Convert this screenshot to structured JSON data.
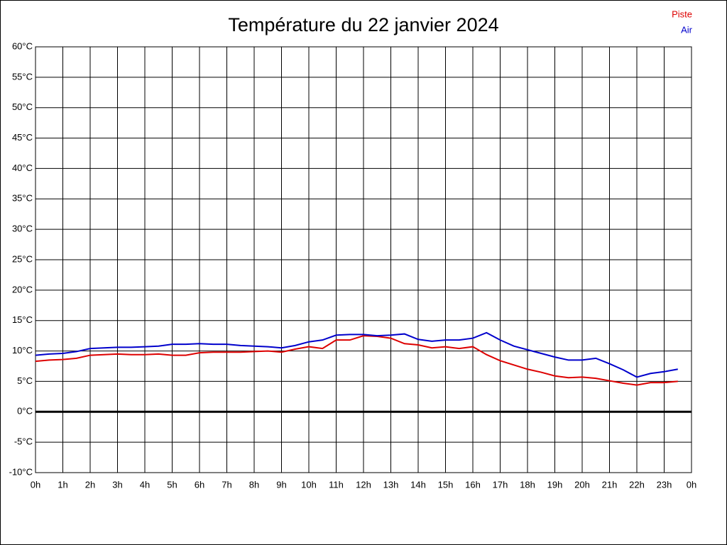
{
  "chart_data": {
    "type": "line",
    "title": "Température du 22 janvier 2024",
    "x": [
      0,
      0.5,
      1,
      1.5,
      2,
      2.5,
      3,
      3.5,
      4,
      4.5,
      5,
      5.5,
      6,
      6.5,
      7,
      7.5,
      8,
      8.5,
      9,
      9.5,
      10,
      10.5,
      11,
      11.5,
      12,
      12.5,
      13,
      13.5,
      14,
      14.5,
      15,
      15.5,
      16,
      16.5,
      17,
      17.5,
      18,
      18.5,
      19,
      19.5,
      20,
      20.5,
      21,
      21.5,
      22,
      22.5,
      23,
      23.5
    ],
    "series": [
      {
        "name": "Piste",
        "color": "#dd0000",
        "values": [
          8.3,
          8.5,
          8.6,
          8.8,
          9.3,
          9.4,
          9.5,
          9.4,
          9.4,
          9.5,
          9.3,
          9.3,
          9.7,
          9.8,
          9.8,
          9.8,
          9.9,
          10.0,
          9.8,
          10.3,
          10.7,
          10.4,
          11.8,
          11.8,
          12.5,
          12.4,
          12.1,
          11.2,
          11.0,
          10.5,
          10.7,
          10.4,
          10.7,
          9.4,
          8.4,
          7.7,
          7.0,
          6.5,
          5.9,
          5.6,
          5.7,
          5.5,
          5.1,
          4.7,
          4.4,
          4.8,
          4.8,
          5.0
        ]
      },
      {
        "name": "Air",
        "color": "#0000cc",
        "values": [
          9.3,
          9.5,
          9.6,
          9.9,
          10.4,
          10.5,
          10.6,
          10.6,
          10.7,
          10.8,
          11.1,
          11.1,
          11.2,
          11.1,
          11.1,
          10.9,
          10.8,
          10.7,
          10.5,
          10.9,
          11.5,
          11.8,
          12.6,
          12.7,
          12.7,
          12.5,
          12.6,
          12.8,
          11.9,
          11.6,
          11.8,
          11.8,
          12.1,
          13.0,
          11.8,
          10.8,
          10.2,
          9.6,
          9.0,
          8.5,
          8.5,
          8.8,
          7.9,
          6.9,
          5.7,
          6.3,
          6.6,
          7.0
        ]
      }
    ],
    "xlim": [
      0,
      24
    ],
    "xticks": [
      {
        "value": 0,
        "label": "0h"
      },
      {
        "value": 1,
        "label": "1h"
      },
      {
        "value": 2,
        "label": "2h"
      },
      {
        "value": 3,
        "label": "3h"
      },
      {
        "value": 4,
        "label": "4h"
      },
      {
        "value": 5,
        "label": "5h"
      },
      {
        "value": 6,
        "label": "6h"
      },
      {
        "value": 7,
        "label": "7h"
      },
      {
        "value": 8,
        "label": "8h"
      },
      {
        "value": 9,
        "label": "9h"
      },
      {
        "value": 10,
        "label": "10h"
      },
      {
        "value": 11,
        "label": "11h"
      },
      {
        "value": 12,
        "label": "12h"
      },
      {
        "value": 13,
        "label": "13h"
      },
      {
        "value": 14,
        "label": "14h"
      },
      {
        "value": 15,
        "label": "15h"
      },
      {
        "value": 16,
        "label": "16h"
      },
      {
        "value": 17,
        "label": "17h"
      },
      {
        "value": 18,
        "label": "18h"
      },
      {
        "value": 19,
        "label": "19h"
      },
      {
        "value": 20,
        "label": "20h"
      },
      {
        "value": 21,
        "label": "21h"
      },
      {
        "value": 22,
        "label": "22h"
      },
      {
        "value": 23,
        "label": "23h"
      },
      {
        "value": 24,
        "label": "0h"
      }
    ],
    "ylim": [
      -10,
      60
    ],
    "yticks": [
      {
        "value": -10,
        "label": "-10°C"
      },
      {
        "value": -5,
        "label": "-5°C"
      },
      {
        "value": 0,
        "label": "0°C"
      },
      {
        "value": 5,
        "label": "5°C"
      },
      {
        "value": 10,
        "label": "10°C"
      },
      {
        "value": 15,
        "label": "15°C"
      },
      {
        "value": 20,
        "label": "20°C"
      },
      {
        "value": 25,
        "label": "25°C"
      },
      {
        "value": 30,
        "label": "30°C"
      },
      {
        "value": 35,
        "label": "35°C"
      },
      {
        "value": 40,
        "label": "40°C"
      },
      {
        "value": 45,
        "label": "45°C"
      },
      {
        "value": 50,
        "label": "50°C"
      },
      {
        "value": 55,
        "label": "55°C"
      },
      {
        "value": 60,
        "label": "60°C"
      }
    ],
    "grid": true,
    "legend": "top-right"
  }
}
